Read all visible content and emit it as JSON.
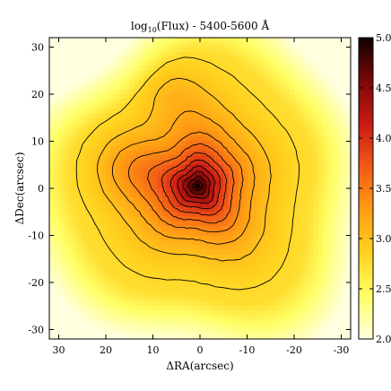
{
  "chart_data": {
    "type": "heatmap",
    "title": "log10(Flux) - 5400-5600 Å",
    "title_parts": {
      "prefix": "log",
      "subscript": "10",
      "suffix": "(Flux) - 5400-5600 Å"
    },
    "xlabel": "ΔRA(arcsec)",
    "ylabel": "ΔDec(arcsec)",
    "xlim": [
      32,
      -32
    ],
    "ylim": [
      -32,
      32
    ],
    "x_ticks": [
      "30",
      "20",
      "10",
      "0",
      "-10",
      "-20",
      "-30"
    ],
    "x_tick_values": [
      30,
      20,
      10,
      0,
      -10,
      -20,
      -30
    ],
    "y_ticks": [
      "30",
      "20",
      "10",
      "0",
      "-10",
      "-20",
      "-30"
    ],
    "y_tick_values": [
      30,
      20,
      10,
      0,
      -10,
      -20,
      -30
    ],
    "colorbar": {
      "range": [
        2.0,
        5.0
      ],
      "ticks": [
        "2.0",
        "2.5",
        "3.0",
        "3.5",
        "4.0",
        "4.5",
        "5.0"
      ],
      "tick_values": [
        2.0,
        2.5,
        3.0,
        3.5,
        4.0,
        4.5,
        5.0
      ],
      "colors": [
        "#ffffe0",
        "#ffff66",
        "#ffd21e",
        "#ff9d14",
        "#f25a16",
        "#c81a14",
        "#7a0808",
        "#120000"
      ]
    },
    "peak_position": [
      0.5,
      0.5
    ],
    "contour_levels": [
      2.8,
      3.0,
      3.2,
      3.4,
      3.6,
      3.8,
      4.0,
      4.2,
      4.4,
      4.6,
      4.8
    ],
    "grid": false,
    "legend": "none"
  }
}
